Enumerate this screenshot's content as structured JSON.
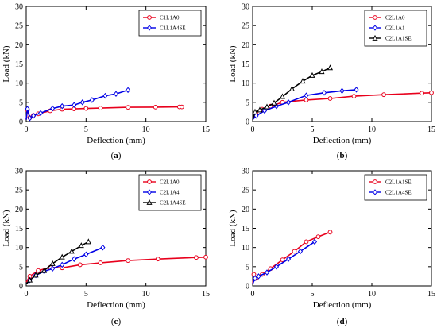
{
  "chart_data": [
    {
      "type": "line",
      "panel_label": "a",
      "xlabel": "Deflection (mm)",
      "ylabel": "Load (kN)",
      "xlim": [
        0,
        15
      ],
      "ylim": [
        0,
        30
      ],
      "xticks": [
        0,
        5,
        10,
        15
      ],
      "yticks": [
        0,
        5,
        10,
        15,
        20,
        25,
        30
      ],
      "legend_position": "top-right",
      "series": [
        {
          "name": "C1L1A0",
          "color": "#e8001c",
          "marker": "circle",
          "x": [
            0,
            0.1,
            0.3,
            0.6,
            1.0,
            2.0,
            3.0,
            4.0,
            5.0,
            6.2,
            8.5,
            10.8,
            12.8,
            13.0
          ],
          "y": [
            0.5,
            3.0,
            1.0,
            1.6,
            2.0,
            2.8,
            3.2,
            3.3,
            3.4,
            3.5,
            3.7,
            3.75,
            3.8,
            3.8
          ]
        },
        {
          "name": "C1L1A4SE",
          "color": "#0000e6",
          "marker": "diamond",
          "x": [
            0,
            0.1,
            0.3,
            0.6,
            1.2,
            2.2,
            3.0,
            4.0,
            4.7,
            5.5,
            6.6,
            7.5,
            8.5
          ],
          "y": [
            0.5,
            3.3,
            0.9,
            1.5,
            2.2,
            3.4,
            4.0,
            4.3,
            5.0,
            5.6,
            6.7,
            7.2,
            8.2
          ]
        }
      ]
    },
    {
      "type": "line",
      "panel_label": "b",
      "xlabel": "Deflection (mm)",
      "ylabel": "Load (kN)",
      "xlim": [
        0,
        15
      ],
      "ylim": [
        0,
        30
      ],
      "xticks": [
        0,
        5,
        10,
        15
      ],
      "yticks": [
        0,
        5,
        10,
        15,
        20,
        25,
        30
      ],
      "legend_position": "top-right",
      "series": [
        {
          "name": "C2L1A0",
          "color": "#e8001c",
          "marker": "circle",
          "x": [
            0,
            0.3,
            0.8,
            1.5,
            2.5,
            4.5,
            6.5,
            8.5,
            11.0,
            14.2,
            15.0
          ],
          "y": [
            0.5,
            2.5,
            3.2,
            4.0,
            5.0,
            5.6,
            6.0,
            6.6,
            7.0,
            7.4,
            7.5
          ]
        },
        {
          "name": "C2L1A1",
          "color": "#0000e6",
          "marker": "diamond",
          "x": [
            0,
            0.3,
            1.0,
            2.0,
            3.0,
            4.5,
            6.0,
            7.5,
            8.7
          ],
          "y": [
            0.5,
            1.5,
            2.8,
            4.0,
            5.0,
            6.8,
            7.5,
            8.0,
            8.3
          ]
        },
        {
          "name": "C2L1A1SE",
          "color": "#000000",
          "marker": "triangle",
          "x": [
            0,
            0.2,
            0.6,
            1.2,
            1.8,
            2.5,
            3.3,
            4.2,
            5.0,
            5.8,
            6.5
          ],
          "y": [
            0.5,
            2.5,
            3.0,
            3.8,
            4.8,
            6.5,
            8.5,
            10.5,
            12.0,
            13.0,
            14.0
          ]
        }
      ]
    },
    {
      "type": "line",
      "panel_label": "c",
      "xlabel": "Deflection (mm)",
      "ylabel": "Load (kN)",
      "xlim": [
        0,
        15
      ],
      "ylim": [
        0,
        30
      ],
      "xticks": [
        0,
        5,
        10,
        15
      ],
      "yticks": [
        0,
        5,
        10,
        15,
        20,
        25,
        30
      ],
      "legend_position": "top-right",
      "series": [
        {
          "name": "C2L1A0",
          "color": "#e8001c",
          "marker": "circle",
          "x": [
            0,
            0.3,
            1.0,
            2.0,
            3.0,
            4.5,
            6.2,
            8.5,
            11.0,
            14.2,
            15.0
          ],
          "y": [
            1.0,
            2.5,
            4.0,
            4.8,
            4.7,
            5.5,
            6.0,
            6.6,
            7.0,
            7.4,
            7.5
          ]
        },
        {
          "name": "C2L1A4",
          "color": "#0000e6",
          "marker": "diamond",
          "x": [
            0,
            0.3,
            0.8,
            1.5,
            2.2,
            3.0,
            4.0,
            5.0,
            6.4
          ],
          "y": [
            0.5,
            1.5,
            2.8,
            3.8,
            4.5,
            5.5,
            7.0,
            8.2,
            10.0
          ]
        },
        {
          "name": "C2L1A4SE",
          "color": "#000000",
          "marker": "triangle",
          "x": [
            0,
            0.3,
            0.8,
            1.5,
            2.2,
            3.0,
            3.8,
            4.6,
            5.2
          ],
          "y": [
            0.5,
            1.5,
            2.8,
            4.0,
            5.8,
            7.5,
            9.0,
            10.5,
            11.5
          ]
        }
      ]
    },
    {
      "type": "line",
      "panel_label": "d",
      "xlabel": "Deflection (mm)",
      "ylabel": "Load (kN)",
      "xlim": [
        0,
        15
      ],
      "ylim": [
        0,
        30
      ],
      "xticks": [
        0,
        5,
        10,
        15
      ],
      "yticks": [
        0,
        5,
        10,
        15,
        20,
        25,
        30
      ],
      "legend_position": "top-right",
      "series": [
        {
          "name": "C2L1A1SE",
          "color": "#e8001c",
          "marker": "circle",
          "x": [
            0,
            0.1,
            0.3,
            0.8,
            1.5,
            2.5,
            3.5,
            4.5,
            5.5,
            6.5
          ],
          "y": [
            0.5,
            3.0,
            2.0,
            3.0,
            4.5,
            6.8,
            9.0,
            11.5,
            12.8,
            14.0
          ]
        },
        {
          "name": "C2L1A4SE",
          "color": "#0000e6",
          "marker": "diamond",
          "x": [
            0,
            0.2,
            0.5,
            1.2,
            2.0,
            3.0,
            4.0,
            5.2
          ],
          "y": [
            0.5,
            2.0,
            2.5,
            3.5,
            5.0,
            7.0,
            9.0,
            11.5
          ]
        }
      ]
    }
  ]
}
